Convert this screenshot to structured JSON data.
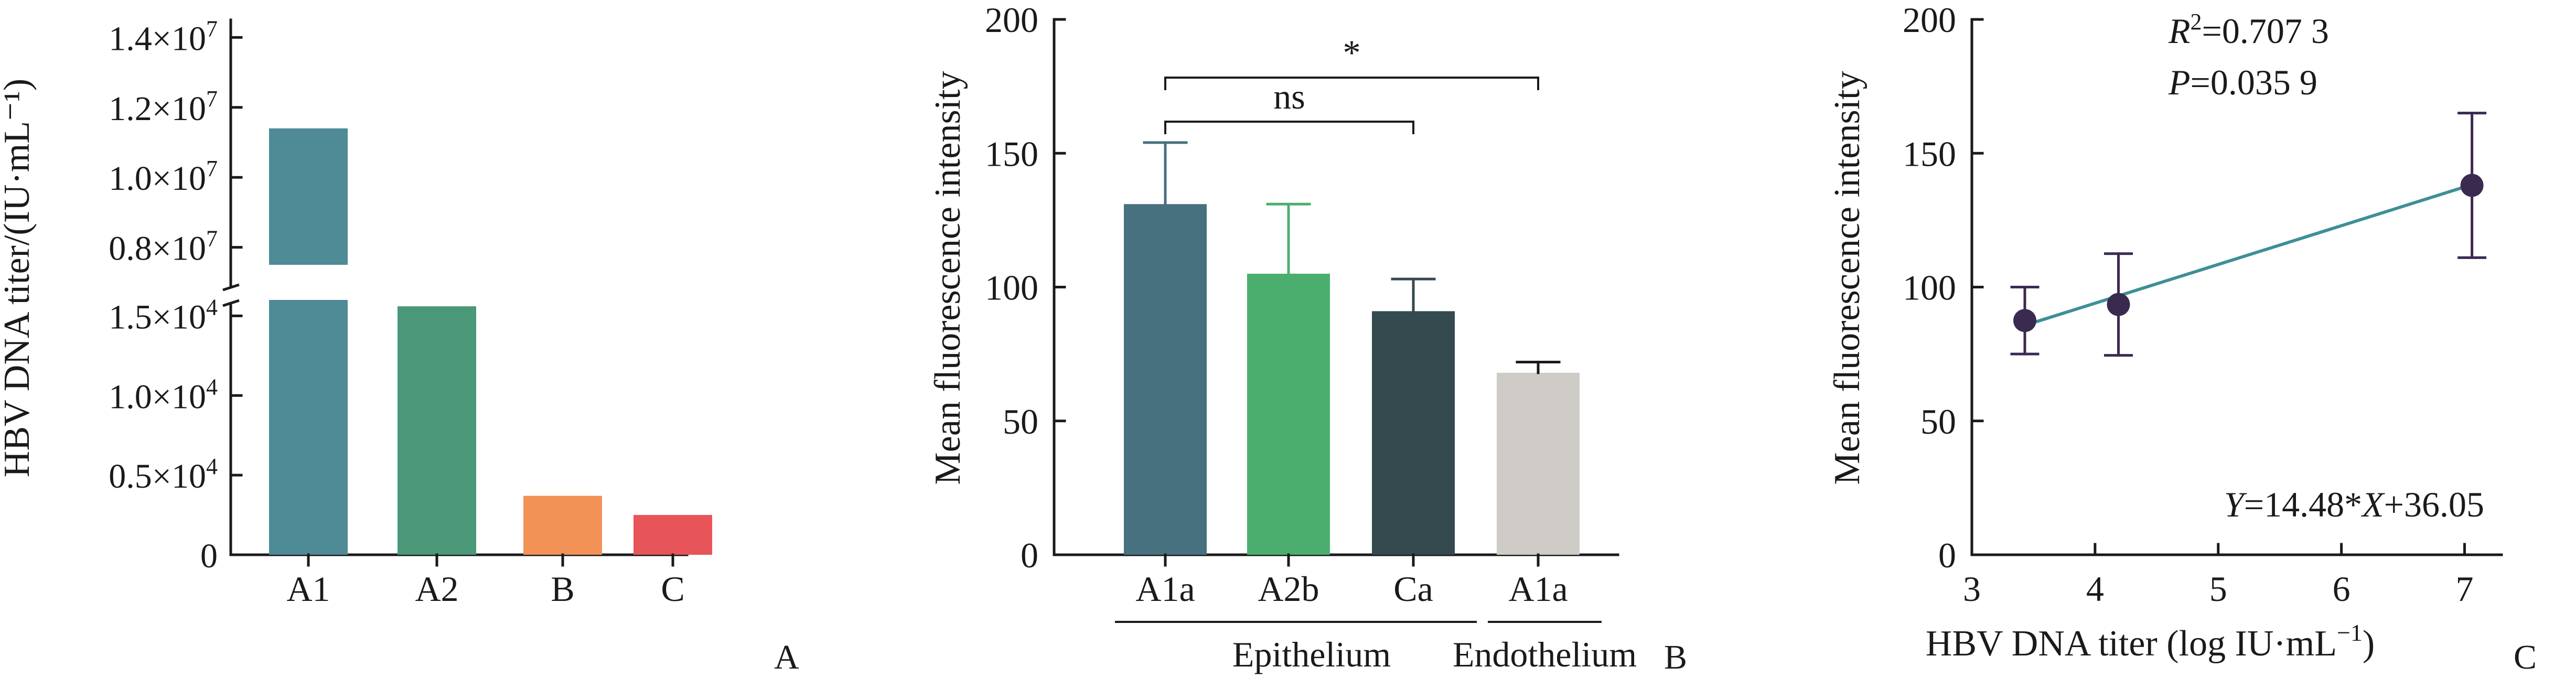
{
  "figure": {
    "background": "#ffffff",
    "axis_color": "#1a1a1a"
  },
  "chart_data": [
    {
      "id": "A",
      "type": "bar",
      "panel_label": "A",
      "ylabel": "HBV DNA titer/(IU·mL⁻¹)",
      "xlabel": "",
      "categories": [
        "A1",
        "A2",
        "B",
        "C"
      ],
      "category_colors": [
        "#1a1a1a",
        "#1a1a1a",
        "#1a1a1a",
        "#8a8a8a"
      ],
      "values": [
        11400000,
        15600,
        3700,
        2500
      ],
      "bar_colors": [
        "#4e8b96",
        "#4a9878",
        "#f29256",
        "#e85558"
      ],
      "axis_break": true,
      "ylim_lower": [
        0,
        16000
      ],
      "ylim_upper": [
        7500000,
        14500000
      ],
      "yticks_lower": [
        0,
        5000,
        10000,
        15000
      ],
      "yticks_upper": [
        8000000,
        10000000,
        12000000,
        14000000
      ],
      "ytick_labels_lower": [
        "0",
        "0.5×10",
        "1.0×10",
        "1.5×10"
      ],
      "ytick_exponents_lower": [
        "",
        "4",
        "4",
        "4"
      ],
      "ytick_labels_upper": [
        "0.8×10",
        "1.0×10",
        "1.2×10",
        "1.4×10"
      ],
      "ytick_exponents_upper": [
        "7",
        "7",
        "7",
        "7"
      ],
      "grid": false
    },
    {
      "id": "B",
      "type": "bar",
      "panel_label": "B",
      "ylabel": "Mean fluorescence intensity",
      "xlabel": "",
      "categories": [
        "A1a",
        "A2b",
        "Ca",
        "A1a"
      ],
      "groups": [
        {
          "name": "Epithelium",
          "categories": [
            0,
            1,
            2
          ]
        },
        {
          "name": "Endothelium",
          "categories": [
            3
          ]
        }
      ],
      "values": [
        131,
        105,
        91,
        68
      ],
      "error_up": [
        23,
        26,
        12,
        4
      ],
      "bar_colors": [
        "#47717f",
        "#4cae6e",
        "#344a4f",
        "#cfcbc7"
      ],
      "error_colors": [
        "#47717f",
        "#4cae6e",
        "#344a4f",
        "#1a1a1a"
      ],
      "ylim": [
        0,
        200
      ],
      "yticks": [
        0,
        50,
        100,
        150,
        200
      ],
      "annotations": [
        {
          "text": "ns",
          "from": 0,
          "to": 2
        },
        {
          "text": "*",
          "from": 0,
          "to": 3
        }
      ],
      "grid": false
    },
    {
      "id": "C",
      "type": "scatter",
      "panel_label": "C",
      "ylabel": "Mean fluorescence intensity",
      "xlabel": "HBV DNA titer (log IU·mL",
      "xlabel_sup": "−1",
      "xlabel_tail": ")",
      "points": [
        {
          "x": 3.43,
          "y": 87.5,
          "err": 12.5
        },
        {
          "x": 4.19,
          "y": 93.5,
          "err": 19
        },
        {
          "x": 7.06,
          "y": 138,
          "err": 27
        }
      ],
      "fit": {
        "slope": 14.48,
        "intercept": 36.05,
        "x_range": [
          3.43,
          7.06
        ]
      },
      "xlim": [
        3,
        7.3
      ],
      "ylim": [
        0,
        200
      ],
      "xticks": [
        3,
        4,
        5,
        6,
        7
      ],
      "yticks": [
        0,
        50,
        100,
        150,
        200
      ],
      "point_color": "#3a2a50",
      "fit_color": "#3e8f96",
      "stats_r2_label": "R",
      "stats_r2_sup": "2",
      "stats_r2_value": "=0.707 3",
      "stats_p_label": "P",
      "stats_p_value": "=0.035 9",
      "equation_y": "Y",
      "equation_mid": "=14.48*",
      "equation_x": "X",
      "equation_tail": "+36.05",
      "grid": false
    }
  ]
}
